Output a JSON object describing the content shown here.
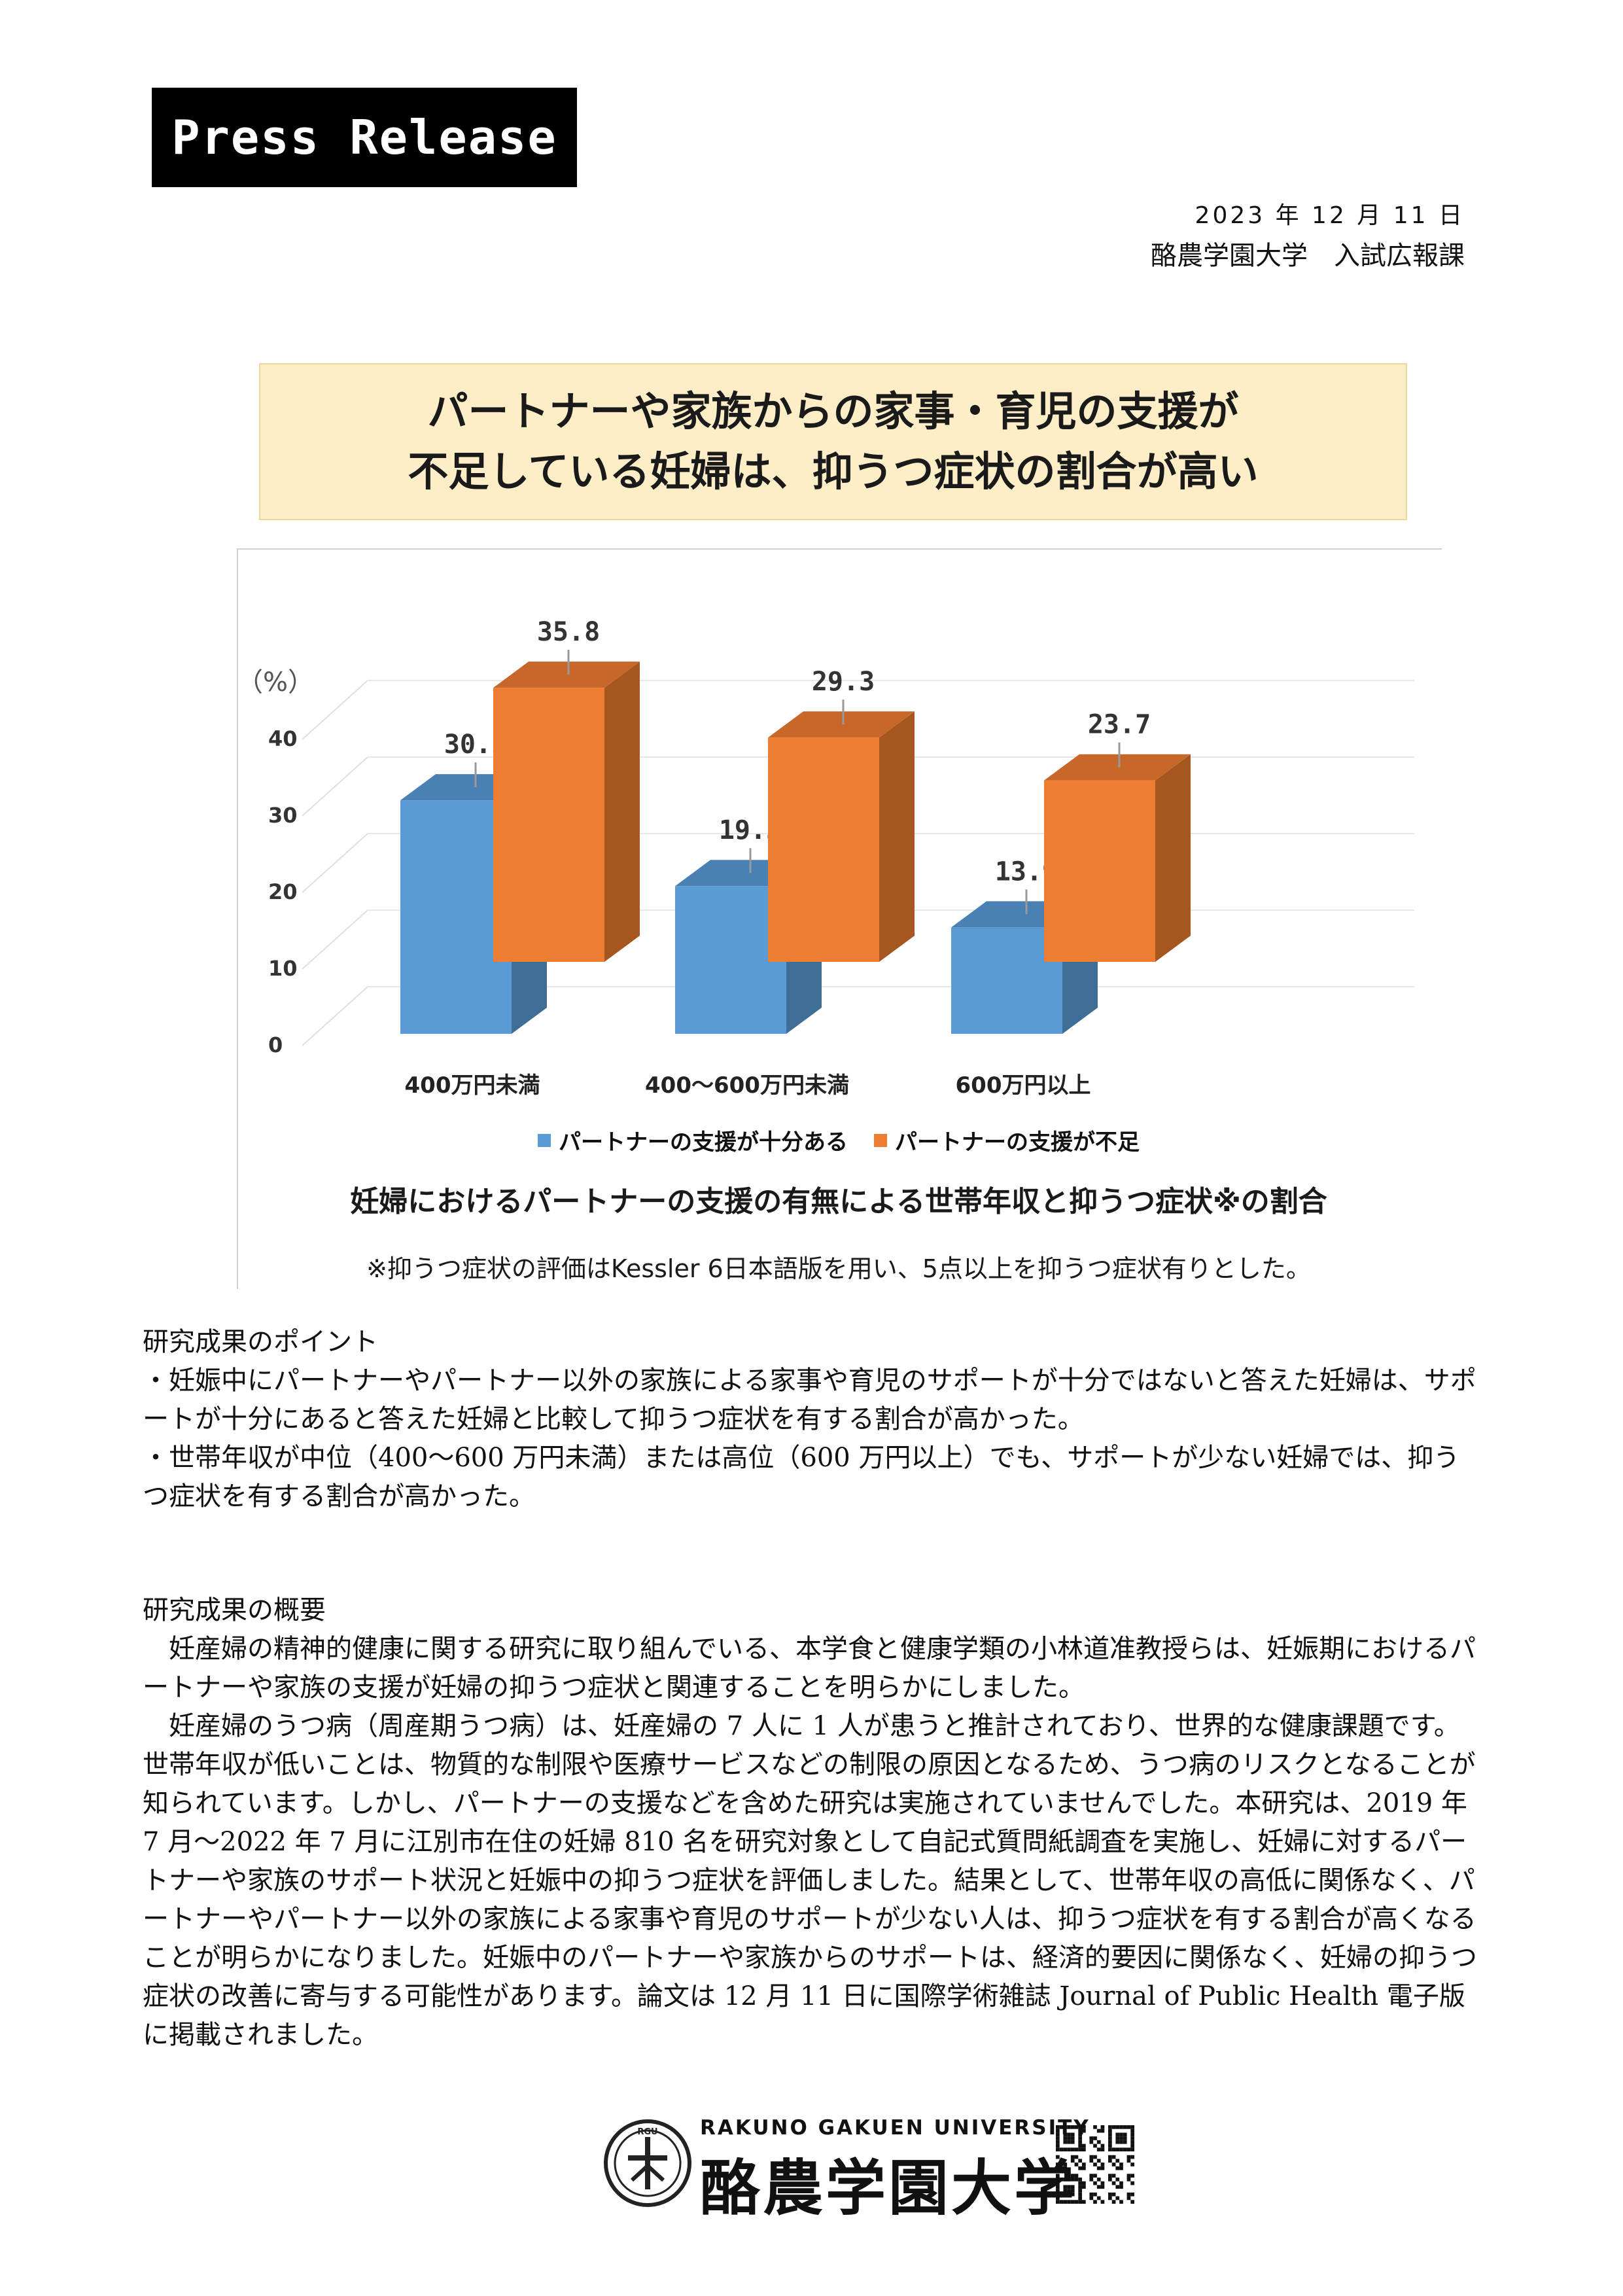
{
  "header": {
    "press_release": "Press Release",
    "date": "2023 年 12 月 11 日",
    "department": "酪農学園大学　入試広報課"
  },
  "headline": {
    "line1": "パートナーや家族からの家事・育児の支援が",
    "line2": "不足している妊婦は、抑うつ症状の割合が高い"
  },
  "chart_data": {
    "type": "bar",
    "ylabel": "（%）",
    "ylim": [
      0,
      40
    ],
    "yticks": [
      "0",
      "10",
      "20",
      "30",
      "40"
    ],
    "categories": [
      "400万円未満",
      "400〜600万円未満",
      "600万円以上"
    ],
    "series": [
      {
        "name": "パートナーの支援が十分ある",
        "values": [
          30.5,
          19.3,
          13.9
        ],
        "labels": [
          "30.5",
          "19.3",
          "13.9"
        ],
        "color": "#5b9bd5"
      },
      {
        "name": "パートナーの支援が不足",
        "values": [
          35.8,
          29.3,
          23.7
        ],
        "labels": [
          "35.8",
          "29.3",
          "23.7"
        ],
        "color": "#ed7d31"
      }
    ],
    "title": "妊婦におけるパートナーの支援の有無による世帯年収と抑うつ症状※の割合",
    "note": "※抑うつ症状の評価はKessler 6日本語版を用い、5点以上を抑うつ症状有りとした。"
  },
  "points": {
    "heading": "研究成果のポイント",
    "items": [
      "・妊娠中にパートナーやパートナー以外の家族による家事や育児のサポートが十分ではないと答えた妊婦は、サポートが十分にあると答えた妊婦と比較して抑うつ症状を有する割合が高かった。",
      "・世帯年収が中位（400〜600 万円未満）または高位（600 万円以上）でも、サポートが少ない妊婦では、抑うつ症状を有する割合が高かった。"
    ]
  },
  "summary": {
    "heading": "研究成果の概要",
    "paragraphs": [
      "妊産婦の精神的健康に関する研究に取り組んでいる、本学食と健康学類の小林道准教授らは、妊娠期におけるパートナーや家族の支援が妊婦の抑うつ症状と関連することを明らかにしました。",
      "妊産婦のうつ病（周産期うつ病）は、妊産婦の 7 人に 1 人が患うと推計されており、世界的な健康課題です。世帯年収が低いことは、物質的な制限や医療サービスなどの制限の原因となるため、うつ病のリスクとなることが知られています。しかし、パートナーの支援などを含めた研究は実施されていませんでした。本研究は、2019 年 7 月〜2022 年 7 月に江別市在住の妊婦 810 名を研究対象として自記式質問紙調査を実施し、妊婦に対するパートナーや家族のサポート状況と妊娠中の抑うつ症状を評価しました。結果として、世帯年収の高低に関係なく、パートナーやパートナー以外の家族による家事や育児のサポートが少ない人は、抑うつ症状を有する割合が高くなることが明らかになりました。妊娠中のパートナーや家族からのサポートは、経済的要因に関係なく、妊婦の抑うつ症状の改善に寄与する可能性があります。論文は 12 月 11 日に国際学術雑誌 Journal of Public Health 電子版に掲載されました。"
    ]
  },
  "footer": {
    "university_en": "RAKUNO GAKUEN UNIVERSITY",
    "university_ja": "酪農学園大学",
    "emblem_text": "RGU"
  }
}
